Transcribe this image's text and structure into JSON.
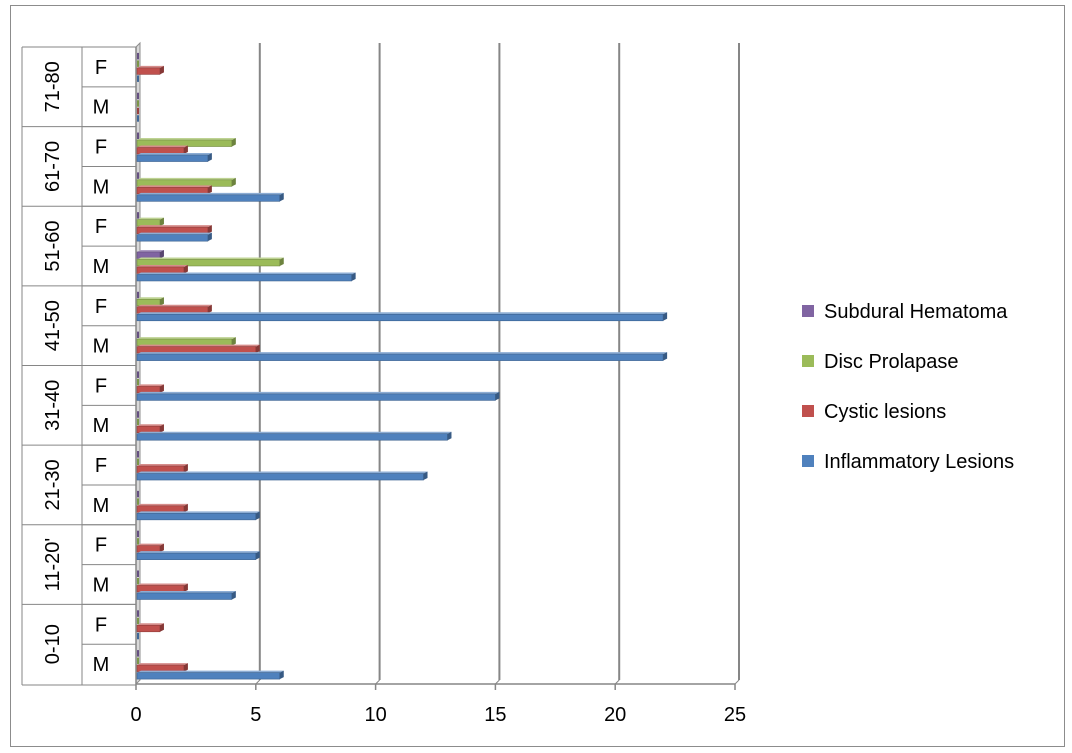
{
  "chart_data": {
    "type": "bar",
    "orientation": "horizontal",
    "style": "3d-clustered",
    "title": "",
    "xlabel": "",
    "ylabel": "",
    "xlim": [
      0,
      25
    ],
    "x_ticks": [
      "0",
      "5",
      "10",
      "15",
      "20",
      "25"
    ],
    "grid": true,
    "legend_position": "right",
    "groups": [
      "0-10",
      "11-20'",
      "21-30",
      "31-40",
      "41-50",
      "51-60",
      "61-70",
      "71-80"
    ],
    "categories": [
      {
        "group": "0-10",
        "sex": "M"
      },
      {
        "group": "0-10",
        "sex": "F"
      },
      {
        "group": "11-20'",
        "sex": "M"
      },
      {
        "group": "11-20'",
        "sex": "F"
      },
      {
        "group": "21-30",
        "sex": "M"
      },
      {
        "group": "21-30",
        "sex": "F"
      },
      {
        "group": "31-40",
        "sex": "M"
      },
      {
        "group": "31-40",
        "sex": "F"
      },
      {
        "group": "41-50",
        "sex": "M"
      },
      {
        "group": "41-50",
        "sex": "F"
      },
      {
        "group": "51-60",
        "sex": "M"
      },
      {
        "group": "51-60",
        "sex": "F"
      },
      {
        "group": "61-70",
        "sex": "M"
      },
      {
        "group": "61-70",
        "sex": "F"
      },
      {
        "group": "71-80",
        "sex": "M"
      },
      {
        "group": "71-80",
        "sex": "F"
      }
    ],
    "series": [
      {
        "name": "Inflammatory Lesions",
        "color": "#4f81bd",
        "values": [
          6,
          0,
          4,
          5,
          5,
          12,
          13,
          15,
          22,
          22,
          9,
          3,
          6,
          3,
          0,
          0
        ]
      },
      {
        "name": "Cystic lesions",
        "color": "#c0504d",
        "values": [
          2,
          1,
          2,
          1,
          2,
          2,
          1,
          1,
          5,
          3,
          2,
          3,
          3,
          2,
          0,
          1
        ]
      },
      {
        "name": "Disc Prolapase",
        "color": "#9bbb59",
        "values": [
          0,
          0,
          0,
          0,
          0,
          0,
          0,
          0,
          4,
          1,
          6,
          1,
          4,
          4,
          0,
          0
        ]
      },
      {
        "name": "Subdural Hematoma",
        "color": "#8064a2",
        "values": [
          0,
          0,
          0,
          0,
          0,
          0,
          0,
          0,
          0,
          0,
          1,
          0,
          0,
          0,
          0,
          0
        ]
      }
    ],
    "legend_order": [
      "Subdural Hematoma",
      "Disc Prolapase",
      "Cystic lesions",
      "Inflammatory Lesions"
    ]
  }
}
